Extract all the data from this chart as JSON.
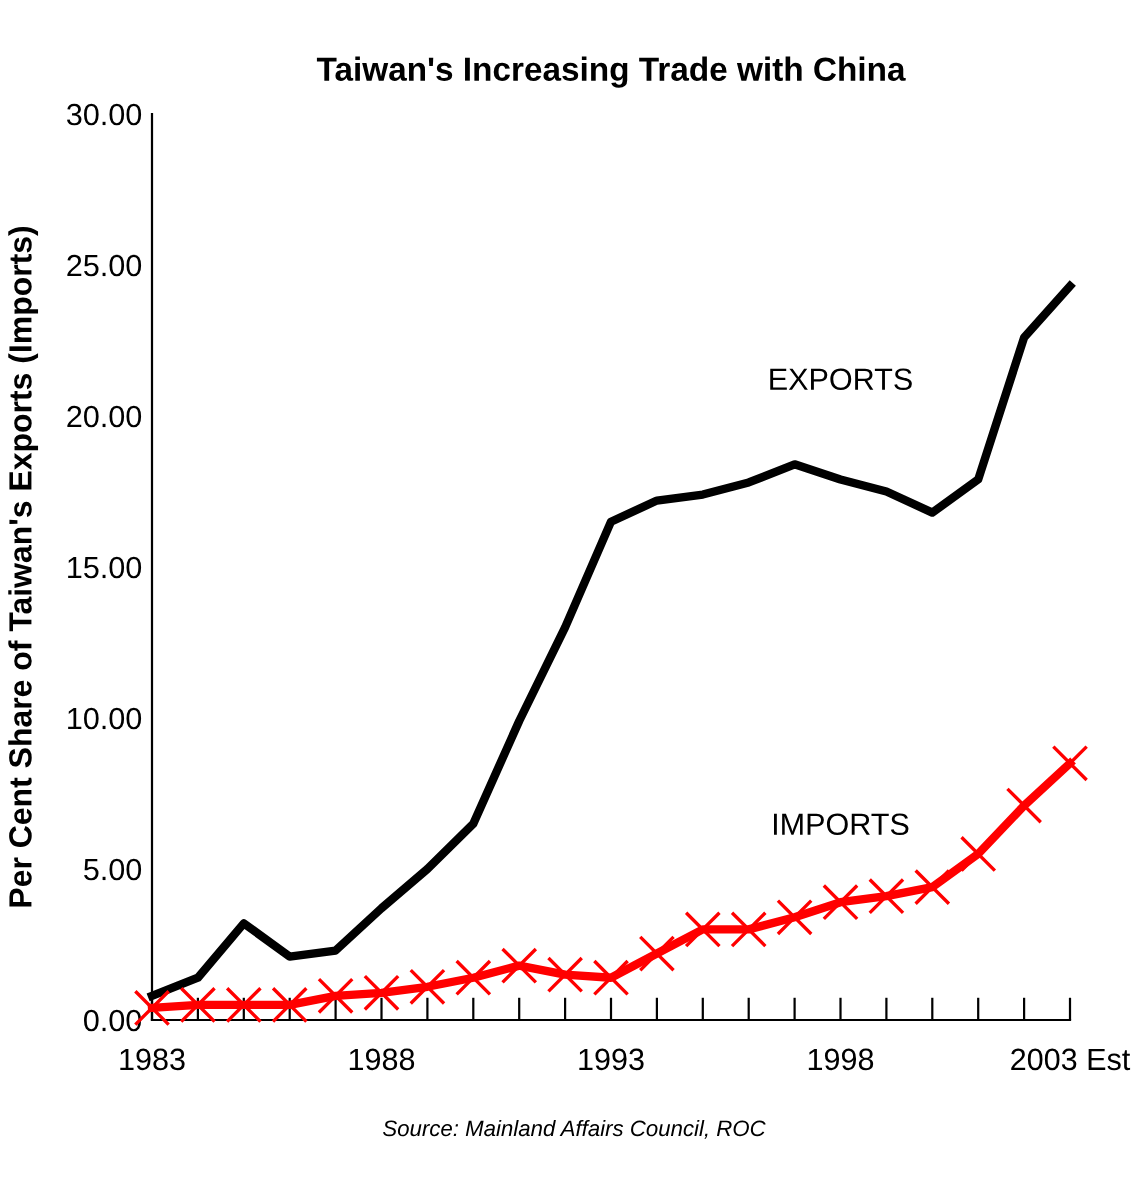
{
  "chart_data": {
    "type": "line",
    "title": "Taiwan's Increasing Trade with China",
    "ylabel": "Per Cent Share of Taiwan's Exports (Imports)",
    "categories": [
      "1983",
      null,
      null,
      null,
      null,
      "1988",
      null,
      null,
      null,
      null,
      "1993",
      null,
      null,
      null,
      null,
      "1998",
      null,
      null,
      null,
      null,
      "2003 Est"
    ],
    "series": [
      {
        "name": "EXPORTS",
        "color": "#000000",
        "marker": "none",
        "values": [
          0.8,
          1.4,
          3.2,
          2.1,
          2.3,
          3.7,
          5.0,
          6.5,
          9.9,
          13.0,
          16.5,
          17.2,
          17.4,
          17.8,
          18.4,
          17.9,
          17.5,
          16.8,
          17.9,
          22.6,
          24.3
        ]
      },
      {
        "name": "IMPORTS",
        "color": "#ff0000",
        "marker": "cross",
        "values": [
          0.4,
          0.5,
          0.5,
          0.5,
          0.8,
          0.9,
          1.1,
          1.4,
          1.8,
          1.5,
          1.4,
          2.2,
          3.0,
          3.0,
          3.4,
          3.9,
          4.1,
          4.4,
          5.5,
          7.1,
          8.5
        ]
      }
    ],
    "ylim": [
      0,
      30
    ],
    "yticks": [
      {
        "value": 0,
        "label": "0.00"
      },
      {
        "value": 5,
        "label": "5.00"
      },
      {
        "value": 10,
        "label": "10.00"
      },
      {
        "value": 15,
        "label": "15.00"
      },
      {
        "value": 20,
        "label": "20.00"
      },
      {
        "value": 25,
        "label": "25.00"
      },
      {
        "value": 30,
        "label": "30.00"
      }
    ],
    "grid": false,
    "legend": false,
    "annotations": [
      "Source: Mainland Affairs Council, ROC"
    ]
  }
}
